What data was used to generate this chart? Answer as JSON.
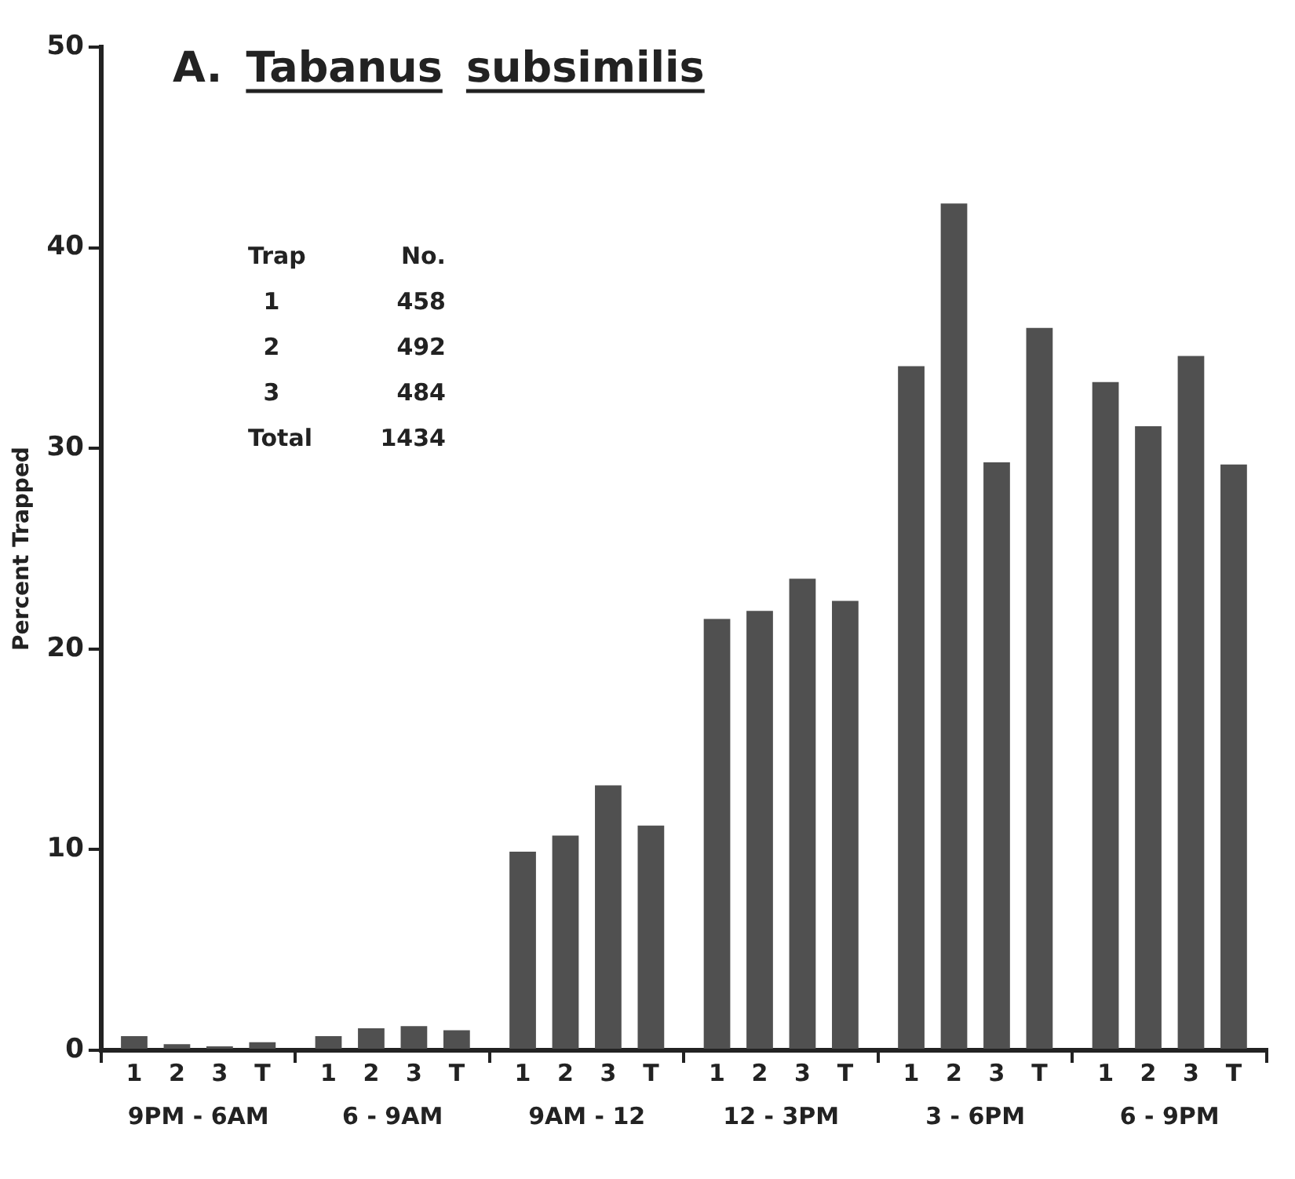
{
  "chart_data": {
    "type": "bar",
    "title": "A. Tabanus subsimilis",
    "ylabel": "Percent Trapped",
    "categories": [
      "9PM - 6AM",
      "6 - 9AM",
      "9AM - 12",
      "12 - 3PM",
      "3 - 6PM",
      "6 - 9PM"
    ],
    "series": [
      {
        "name": "1",
        "color": "#505050",
        "values": [
          0.7,
          0.7,
          9.9,
          21.5,
          34.1,
          33.3
        ]
      },
      {
        "name": "2",
        "color": "#505050",
        "values": [
          0.3,
          1.1,
          10.7,
          21.9,
          42.2,
          31.1
        ]
      },
      {
        "name": "3",
        "color": "#505050",
        "values": [
          0.2,
          1.2,
          13.2,
          23.5,
          29.3,
          34.6
        ]
      },
      {
        "name": "T",
        "color": "#505050",
        "values": [
          0.4,
          1.0,
          11.2,
          22.4,
          36.0,
          29.2
        ]
      }
    ],
    "ylim": [
      0,
      50
    ],
    "yticks": [
      0,
      10,
      20,
      30,
      40,
      50
    ],
    "grid": false,
    "legend": false,
    "annotations": [
      "Trap\tNo.",
      "1\t458",
      "2\t492",
      "3\t484",
      "Total\t1434"
    ]
  }
}
